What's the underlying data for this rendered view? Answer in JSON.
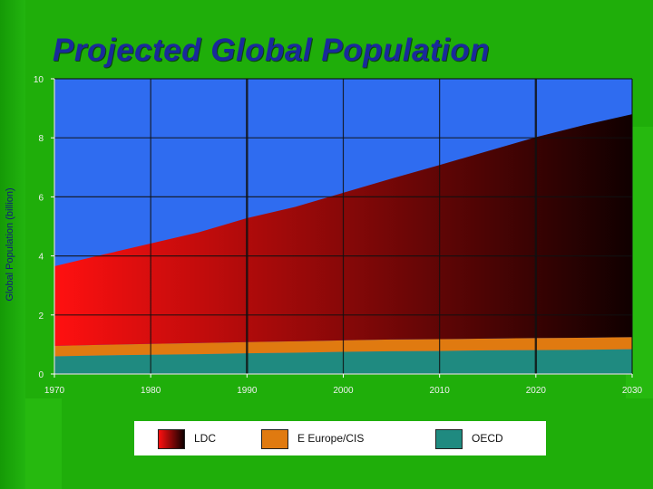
{
  "title": "Projected Global Population",
  "chart_data": {
    "type": "area",
    "stacked": true,
    "title": "Projected Global Population",
    "xlabel": "",
    "ylabel": "Global Population (billion)",
    "xlim": [
      1970,
      2030
    ],
    "ylim": [
      0,
      10
    ],
    "x_ticks": [
      1970,
      1980,
      1990,
      2000,
      2010,
      2020,
      2030
    ],
    "y_ticks": [
      0,
      2,
      4,
      6,
      8,
      10
    ],
    "x": [
      1970,
      1975,
      1980,
      1985,
      1990,
      1995,
      2000,
      2005,
      2010,
      2015,
      2020,
      2025,
      2030
    ],
    "series": [
      {
        "name": "OECD",
        "values": [
          0.6,
          0.63,
          0.65,
          0.67,
          0.7,
          0.72,
          0.75,
          0.77,
          0.78,
          0.8,
          0.81,
          0.82,
          0.84
        ]
      },
      {
        "name": "E Europe/CIS",
        "values": [
          0.35,
          0.36,
          0.37,
          0.38,
          0.38,
          0.39,
          0.39,
          0.4,
          0.4,
          0.4,
          0.41,
          0.41,
          0.41
        ]
      },
      {
        "name": "LDC",
        "values": [
          2.7,
          3.05,
          3.4,
          3.75,
          4.2,
          4.55,
          5.0,
          5.45,
          5.9,
          6.35,
          6.8,
          7.2,
          7.55
        ]
      }
    ],
    "colors": {
      "OECD": "#1f8a80",
      "E Europe/CIS": "#e07a10",
      "LDC_start": "#ff1010",
      "LDC_end": "#100000",
      "plot_background": "#2f6cf0"
    },
    "grid": true,
    "legend_position": "bottom"
  }
}
